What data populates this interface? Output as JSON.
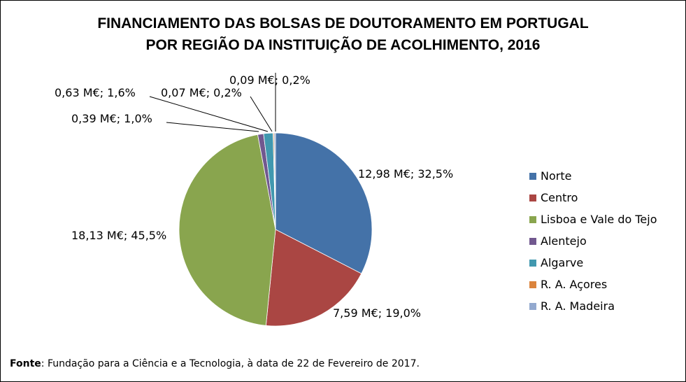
{
  "chart_data": {
    "type": "pie",
    "title": [
      "FINANCIAMENTO DAS BOLSAS DE DOUTORAMENTO EM PORTUGAL",
      "POR REGIÃO DA INSTITUIÇÃO DE ACOLHIMENTO, 2016"
    ],
    "slices": [
      {
        "name": "Norte",
        "value": 12.98,
        "percent": 32.5,
        "label": "12,98 M€; 32,5%",
        "color": "#4472A8"
      },
      {
        "name": "Centro",
        "value": 7.59,
        "percent": 19.0,
        "label": "7,59 M€; 19,0%",
        "color": "#AA4643"
      },
      {
        "name": "Lisboa e Vale do Tejo",
        "value": 18.13,
        "percent": 45.5,
        "label": "18,13 M€; 45,5%",
        "color": "#89A54E"
      },
      {
        "name": "Alentejo",
        "value": 0.39,
        "percent": 1.0,
        "label": "0,39 M€; 1,0%",
        "color": "#71588F"
      },
      {
        "name": "Algarve",
        "value": 0.63,
        "percent": 1.6,
        "label": "0,63 M€; 1,6%",
        "color": "#4198AF"
      },
      {
        "name": "R. A. Açores",
        "value": 0.07,
        "percent": 0.2,
        "label": "0,07 M€; 0,2%",
        "color": "#DB843D"
      },
      {
        "name": "R. A. Madeira",
        "value": 0.09,
        "percent": 0.2,
        "label": "0,09 M€; 0,2%",
        "color": "#93A9CF"
      }
    ],
    "legend_position": "right"
  },
  "source": {
    "label": "Fonte",
    "text": ": Fundação para a Ciência e a Tecnologia, à data de 22 de Fevereiro de 2017."
  }
}
